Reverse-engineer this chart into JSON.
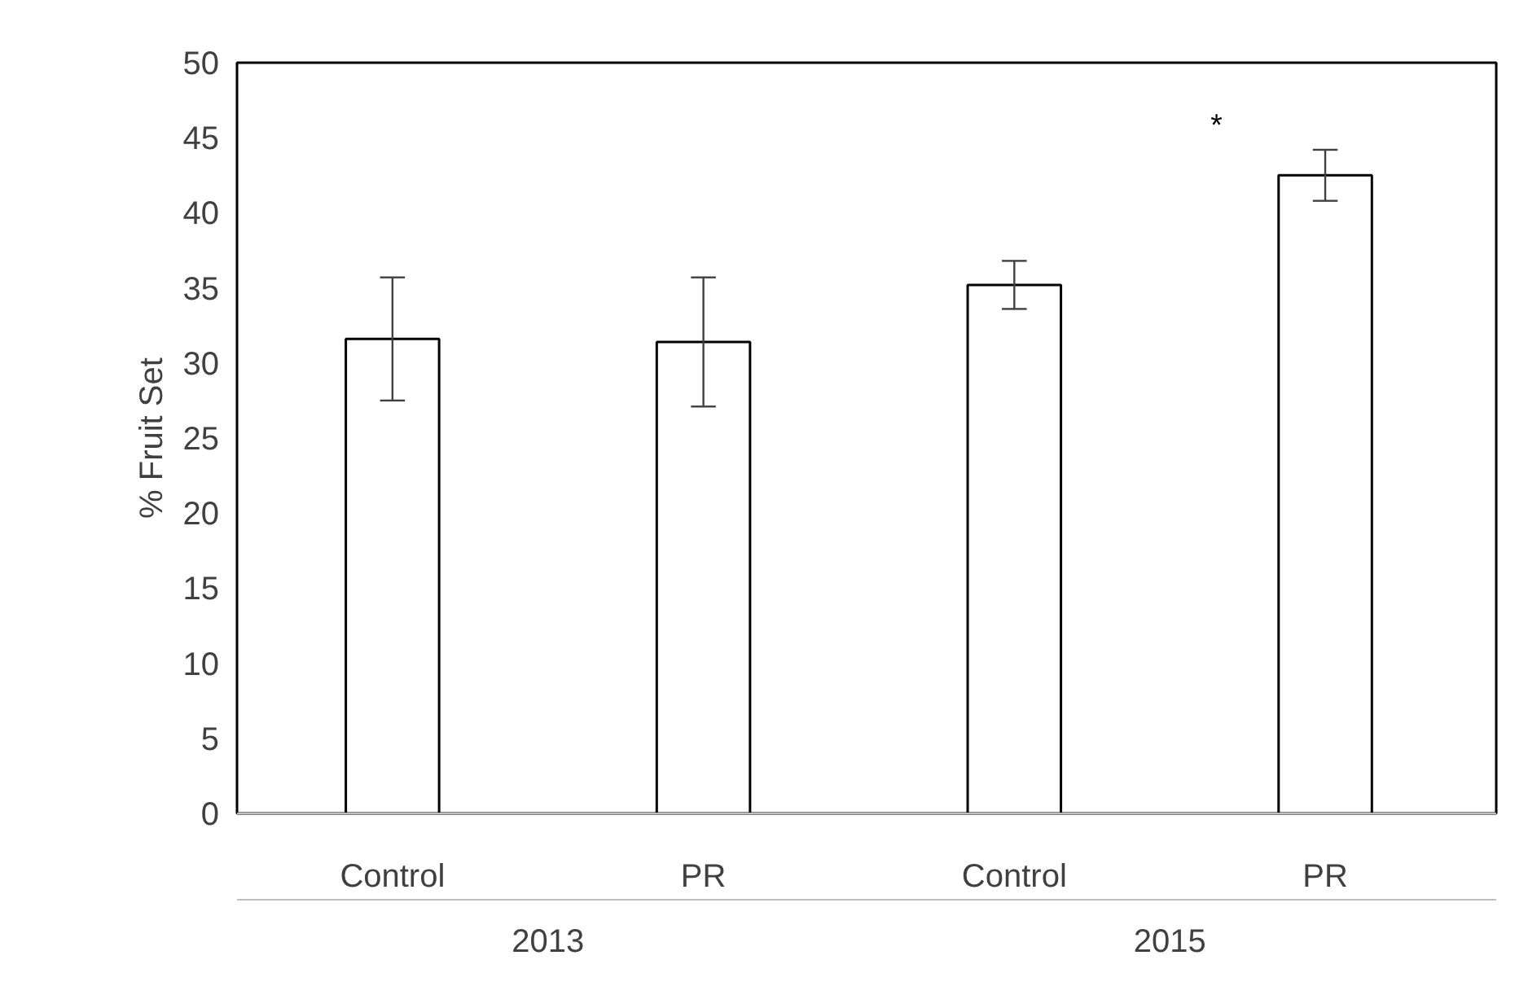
{
  "chart_data": {
    "type": "bar",
    "ylabel": "% Fruit Set",
    "categories": [
      "Control",
      "PR",
      "Control",
      "PR"
    ],
    "series": [
      {
        "color": "#ffffff",
        "values": [
          31.6,
          31.4,
          35.2,
          42.5
        ],
        "errors": [
          4.1,
          4.3,
          1.6,
          1.7
        ]
      }
    ],
    "ylim": [
      0,
      50
    ],
    "yticks": [
      0,
      5,
      10,
      15,
      20,
      25,
      30,
      35,
      40,
      45,
      50
    ],
    "grid": false,
    "annotations": [
      "2013",
      "2015",
      "*"
    ]
  }
}
